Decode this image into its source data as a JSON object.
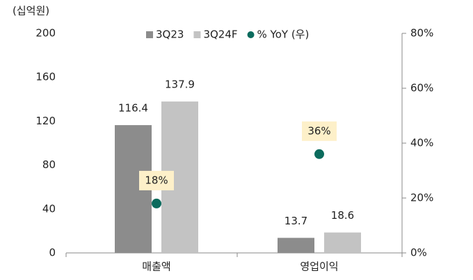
{
  "chart_data": {
    "type": "bar",
    "unit_label": "(십억원)",
    "categories": [
      "매출액",
      "영업이익"
    ],
    "series": [
      {
        "name": "3Q23",
        "type": "bar",
        "color": "#8c8c8c",
        "values": [
          116.4,
          13.7
        ]
      },
      {
        "name": "3Q24F",
        "type": "bar",
        "color": "#c3c3c3",
        "values": [
          137.9,
          18.6
        ]
      },
      {
        "name": "% YoY (우)",
        "type": "scatter",
        "axis": "y2",
        "color": "#0b6b5d",
        "values": [
          18,
          36
        ],
        "value_labels": [
          "18%",
          "36%"
        ]
      }
    ],
    "ylim": [
      0,
      200
    ],
    "yticks": [
      0,
      40,
      80,
      120,
      160,
      200
    ],
    "y2lim": [
      0,
      80
    ],
    "y2ticks": [
      {
        "value": 0,
        "label": "0%"
      },
      {
        "value": 20,
        "label": "20%"
      },
      {
        "value": 40,
        "label": "40%"
      },
      {
        "value": 60,
        "label": "60%"
      },
      {
        "value": 80,
        "label": "80%"
      }
    ],
    "legend": "top"
  }
}
